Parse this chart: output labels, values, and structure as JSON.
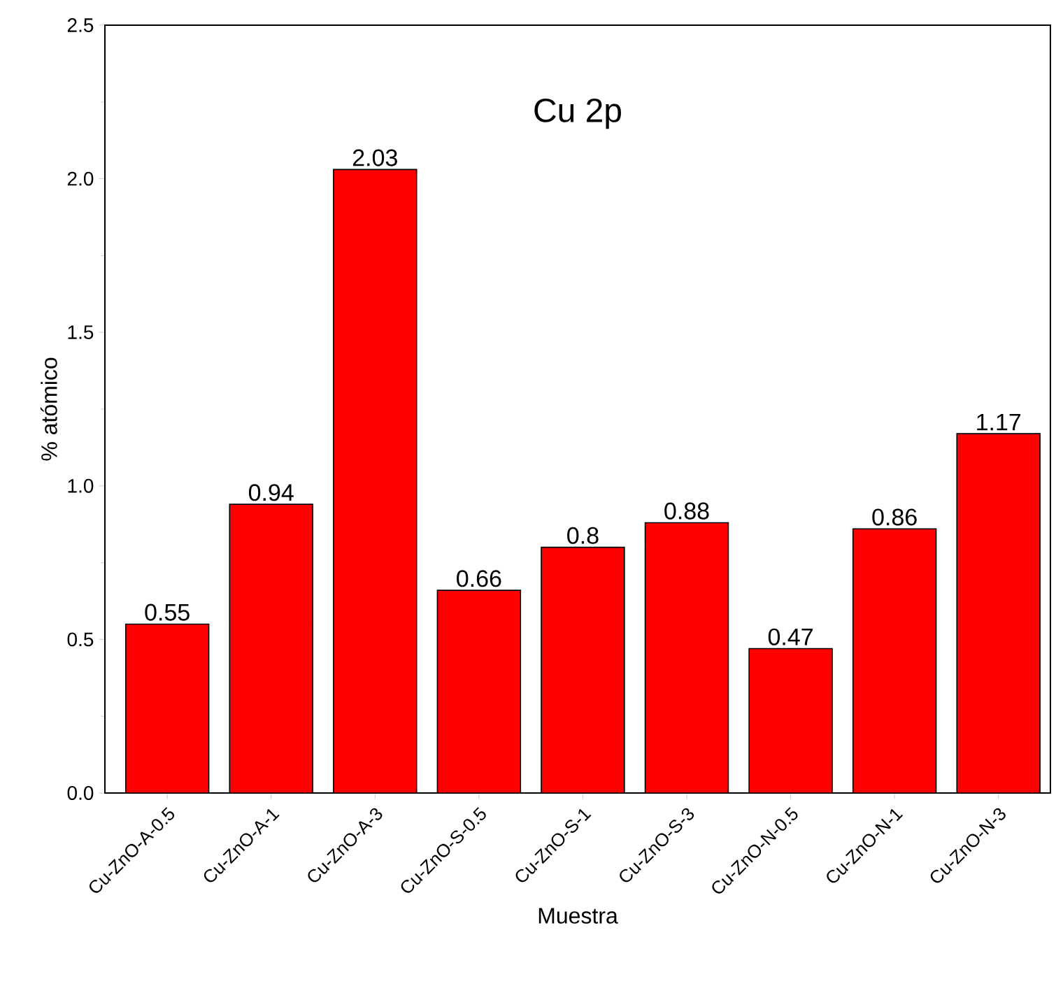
{
  "chart_data": {
    "type": "bar",
    "title": "Cu 2p",
    "xlabel": "Muestra",
    "ylabel": "% atómico",
    "categories": [
      "Cu-ZnO-A-0.5",
      "Cu-ZnO-A-1",
      "Cu-ZnO-A-3",
      "Cu-ZnO-S-0.5",
      "Cu-ZnO-S-1",
      "Cu-ZnO-S-3",
      "Cu-ZnO-N-0.5",
      "Cu-ZnO-N-1",
      "Cu-ZnO-N-3"
    ],
    "values": [
      0.55,
      0.94,
      2.03,
      0.66,
      0.8,
      0.88,
      0.47,
      0.86,
      1.17
    ],
    "color": "#ff0000",
    "data_labels": true,
    "ylim": [
      0,
      2.5
    ],
    "yticks": [
      {
        "value": 0,
        "label": "0.0"
      },
      {
        "value": 0.5,
        "label": "0.5"
      },
      {
        "value": 1,
        "label": "1.0"
      },
      {
        "value": 1.5,
        "label": "1.5"
      },
      {
        "value": 2,
        "label": "2.0"
      },
      {
        "value": 2.5,
        "label": "2.5"
      }
    ]
  }
}
